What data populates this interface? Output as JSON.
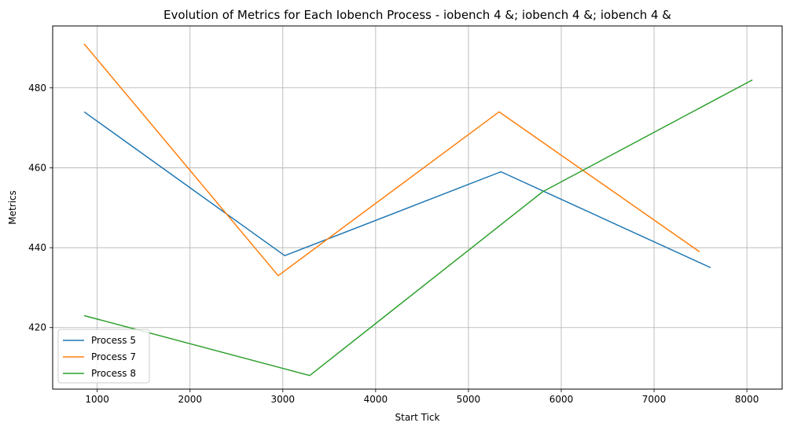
{
  "chart_data": {
    "type": "line",
    "title": "Evolution of Metrics for Each Iobench Process - iobench 4 &; iobench 4 &; iobench 4 &",
    "xlabel": "Start Tick",
    "ylabel": "Metrics",
    "xlim": [
      520,
      8380
    ],
    "ylim": [
      404.6,
      495.5
    ],
    "xticks": [
      1000,
      2000,
      3000,
      4000,
      5000,
      6000,
      7000,
      8000
    ],
    "yticks": [
      420,
      440,
      460,
      480
    ],
    "grid": true,
    "legend_position": "lower left",
    "series": [
      {
        "name": "Process 5",
        "color": "#1f77b4",
        "x": [
          860,
          3020,
          5350,
          7610
        ],
        "y": [
          474,
          438,
          459,
          435
        ]
      },
      {
        "name": "Process 7",
        "color": "#ff7f0e",
        "x": [
          860,
          2950,
          5330,
          7490
        ],
        "y": [
          491,
          433,
          474,
          439
        ]
      },
      {
        "name": "Process 8",
        "color": "#2ca02c",
        "x": [
          860,
          3290,
          5800,
          8060
        ],
        "y": [
          423,
          408,
          454,
          482
        ]
      }
    ]
  }
}
